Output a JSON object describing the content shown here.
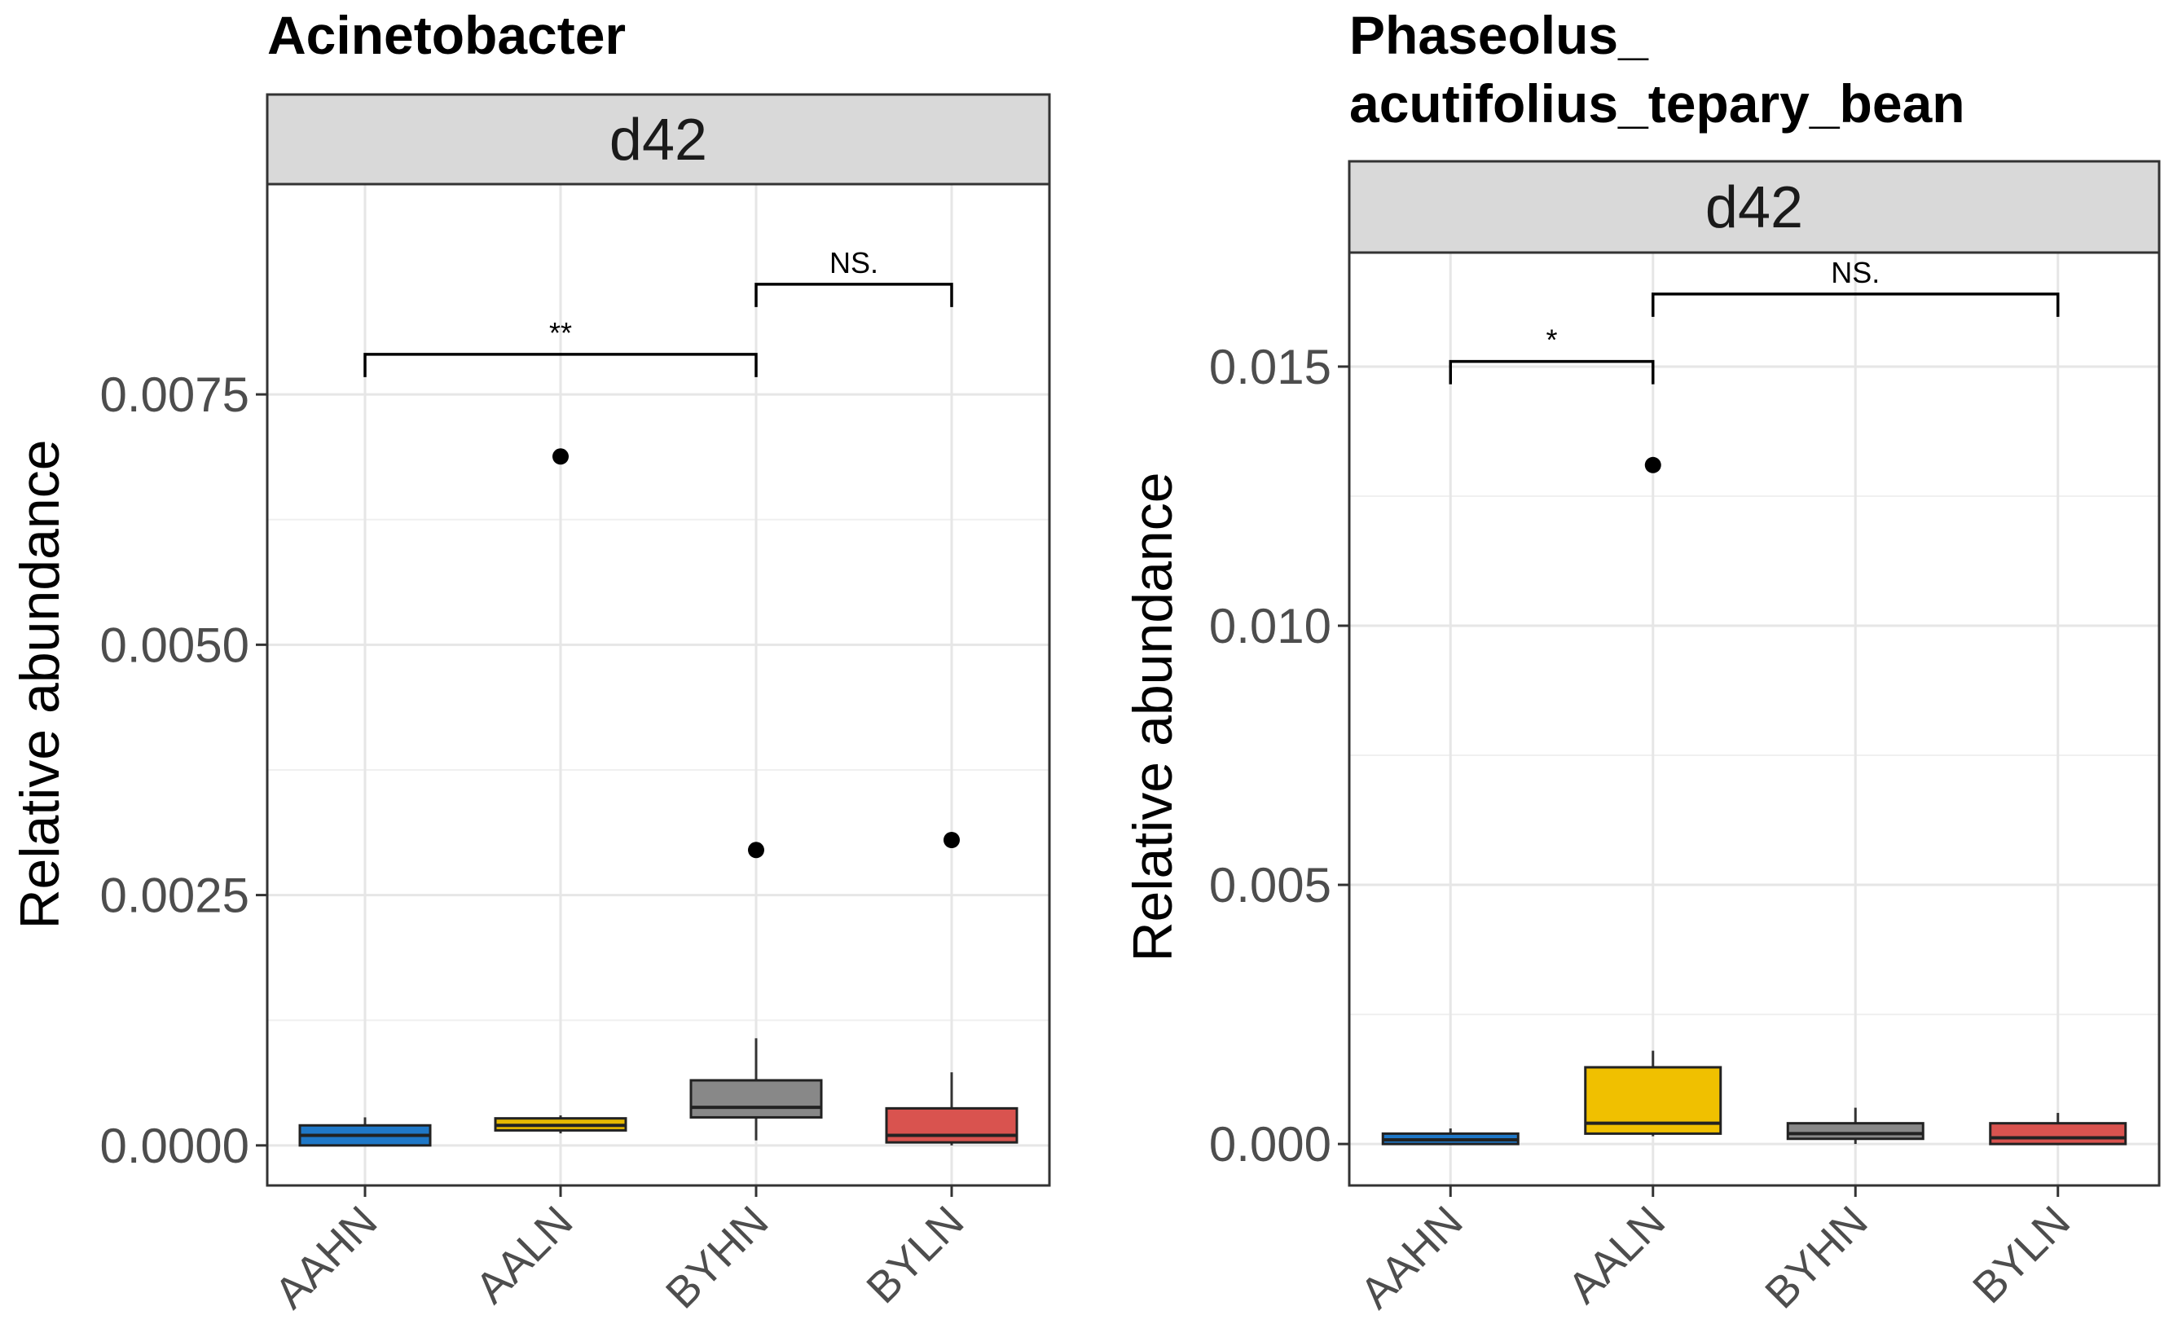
{
  "chart_data": [
    {
      "type": "box",
      "title": "Acinetobacter",
      "facet": "d42",
      "ylabel": "Relative abundance",
      "xlabel": "",
      "ylim": [
        -0.0004,
        0.0096
      ],
      "yticks": [
        0.0,
        0.0025,
        0.005,
        0.0075
      ],
      "ytick_labels": [
        "0.0000",
        "0.0025",
        "0.0050",
        "0.0075"
      ],
      "grid": true,
      "categories": [
        "AAHN",
        "AALN",
        "BYHN",
        "BYLN"
      ],
      "boxes": [
        {
          "category": "AAHN",
          "color": "#1f78c8",
          "whisker_low": 0.0,
          "q1": 0.0,
          "median": 0.0001,
          "q3": 0.0002,
          "whisker_high": 0.00028,
          "outliers": []
        },
        {
          "category": "AALN",
          "color": "#e6b800",
          "whisker_low": 0.00012,
          "q1": 0.00015,
          "median": 0.0002,
          "q3": 0.00027,
          "whisker_high": 0.0003,
          "outliers": [
            0.00688
          ]
        },
        {
          "category": "BYHN",
          "color": "#888888",
          "whisker_low": 5e-05,
          "q1": 0.00028,
          "median": 0.00038,
          "q3": 0.00065,
          "whisker_high": 0.00107,
          "outliers": [
            0.00295
          ]
        },
        {
          "category": "BYLN",
          "color": "#d9534f",
          "whisker_low": 0.0,
          "q1": 3e-05,
          "median": 0.0001,
          "q3": 0.00037,
          "whisker_high": 0.00073,
          "outliers": [
            0.00305
          ]
        }
      ],
      "comparisons": [
        {
          "from": "AAHN",
          "to": "BYHN",
          "label": "**",
          "y": 0.0079
        },
        {
          "from": "BYHN",
          "to": "BYLN",
          "label": "NS.",
          "y": 0.0086
        }
      ]
    },
    {
      "type": "box",
      "title_lines": [
        "Phaseolus_",
        "acutifolius_tepary_bean"
      ],
      "facet": "d42",
      "ylabel": "Relative abundance",
      "xlabel": "",
      "ylim": [
        -0.0008,
        0.0172
      ],
      "yticks": [
        0.0,
        0.005,
        0.01,
        0.015
      ],
      "ytick_labels": [
        "0.000",
        "0.005",
        "0.010",
        "0.015"
      ],
      "grid": true,
      "categories": [
        "AAHN",
        "AALN",
        "BYHN",
        "BYLN"
      ],
      "boxes": [
        {
          "category": "AAHN",
          "color": "#1f78c8",
          "whisker_low": 0.0,
          "q1": 0.0,
          "median": 8e-05,
          "q3": 0.0002,
          "whisker_high": 0.0003,
          "outliers": []
        },
        {
          "category": "AALN",
          "color": "#f0c000",
          "whisker_low": 0.00015,
          "q1": 0.0002,
          "median": 0.0004,
          "q3": 0.00148,
          "whisker_high": 0.0018,
          "outliers": [
            0.0131
          ]
        },
        {
          "category": "BYHN",
          "color": "#888888",
          "whisker_low": 0.0,
          "q1": 0.0001,
          "median": 0.0002,
          "q3": 0.0004,
          "whisker_high": 0.0007,
          "outliers": []
        },
        {
          "category": "BYLN",
          "color": "#d9534f",
          "whisker_low": 0.0,
          "q1": 0.0,
          "median": 0.00012,
          "q3": 0.0004,
          "whisker_high": 0.0006,
          "outliers": []
        }
      ],
      "comparisons": [
        {
          "from": "AAHN",
          "to": "AALN",
          "label": "*",
          "y": 0.0151
        },
        {
          "from": "AALN",
          "to": "BYLN",
          "label": "NS.",
          "y": 0.0164
        }
      ]
    }
  ]
}
